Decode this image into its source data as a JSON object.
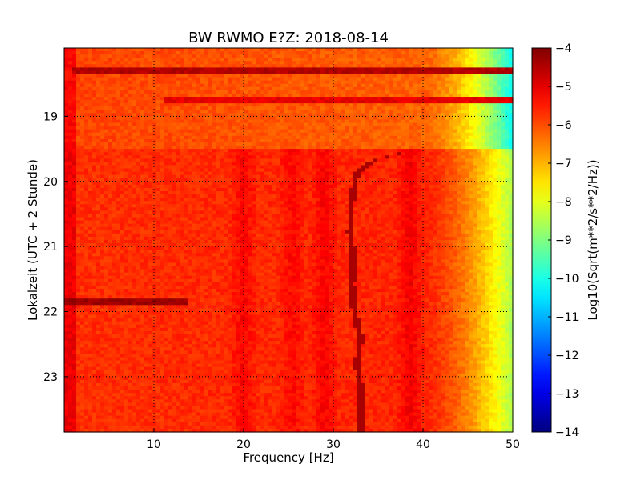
{
  "chart_data": {
    "type": "heatmap",
    "title": "BW RWMO E?Z: 2018-08-14",
    "xlabel": "Frequency [Hz]",
    "ylabel": "Lokalzeit (UTC + 2 Stunde)",
    "xlim": [
      0,
      50
    ],
    "ylim": [
      17.95,
      23.85
    ],
    "y_axis_inverted": true,
    "x_ticks": [
      "10",
      "20",
      "30",
      "40",
      "50"
    ],
    "x_tick_values": [
      10,
      20,
      30,
      40,
      50
    ],
    "y_ticks": [
      "19",
      "20",
      "21",
      "22",
      "23"
    ],
    "y_tick_values": [
      19,
      20,
      21,
      22,
      23
    ],
    "grid": "dotted",
    "colormap": "jet",
    "colorbar": {
      "label": "Log10(Sqrt(m**2/s**2/Hz))",
      "range": [
        -14,
        -4
      ],
      "ticks": [
        "−4",
        "−5",
        "−6",
        "−7",
        "−8",
        "−9",
        "−10",
        "−11",
        "−12",
        "−13",
        "−14"
      ],
      "tick_values": [
        -4,
        -5,
        -6,
        -7,
        -8,
        -9,
        -10,
        -11,
        -12,
        -13,
        -14
      ]
    },
    "regions": [
      {
        "from": 17.95,
        "to": 19.48,
        "level_low_freq": -5.9,
        "level_40hz": -6.2,
        "level_50hz": -10.2
      },
      {
        "from": 19.48,
        "to": 23.85,
        "level_low_freq": -5.7,
        "level_40hz": -5.6,
        "level_50hz": -8.6
      }
    ],
    "horizontal_bands": [
      {
        "time": 18.3,
        "from_hz": 1,
        "to_hz": 50,
        "level": -4.5
      },
      {
        "time": 18.77,
        "from_hz": 11,
        "to_hz": 50,
        "level": -5.0
      },
      {
        "time": 21.87,
        "from_hz": 0,
        "to_hz": 14,
        "level": -4.3
      }
    ],
    "tonal_track": {
      "level": -4.4,
      "points": [
        {
          "time": 19.55,
          "freq": 38.0
        },
        {
          "time": 19.62,
          "freq": 36.0
        },
        {
          "time": 19.7,
          "freq": 34.0
        },
        {
          "time": 19.9,
          "freq": 32.5
        },
        {
          "time": 20.3,
          "freq": 32.0
        },
        {
          "time": 20.8,
          "freq": 31.8
        },
        {
          "time": 21.2,
          "freq": 32.2
        },
        {
          "time": 21.6,
          "freq": 32.0
        },
        {
          "time": 22.0,
          "freq": 32.3
        },
        {
          "time": 22.4,
          "freq": 33.0
        },
        {
          "time": 22.8,
          "freq": 32.6
        },
        {
          "time": 23.2,
          "freq": 33.0
        },
        {
          "time": 23.85,
          "freq": 33.0
        }
      ]
    },
    "vertical_stripes": [
      {
        "freq": 20.0,
        "from": 19.48,
        "to": 23.85,
        "level": -5.1
      },
      {
        "freq": 25.5,
        "from": 19.48,
        "to": 23.85,
        "level": -5.2
      },
      {
        "freq": 29.0,
        "from": 19.48,
        "to": 23.85,
        "level": -5.1
      },
      {
        "freq": 38.5,
        "from": 19.48,
        "to": 23.85,
        "level": -5.0
      }
    ]
  }
}
